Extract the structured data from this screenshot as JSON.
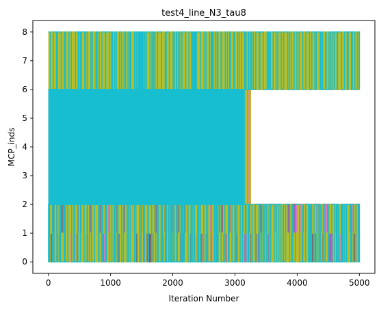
{
  "chart_data": {
    "type": "line",
    "title": "test4_line_N3_tau8",
    "xlabel": "Iteration Number",
    "ylabel": "MCP_inds",
    "xlim": [
      -250,
      5250
    ],
    "ylim": [
      -0.4,
      8.4
    ],
    "xticks": [
      0,
      1000,
      2000,
      3000,
      4000,
      5000
    ],
    "yticks": [
      0,
      1,
      2,
      3,
      4,
      5,
      6,
      7,
      8
    ],
    "grid": false,
    "legend": "none",
    "x_range": [
      0,
      5000
    ],
    "series": [
      {
        "color": "#1f77b4",
        "segments": [
          {
            "x": [
              0,
              5000
            ],
            "levels": [
              6,
              8
            ],
            "density": 0.45
          },
          {
            "x": [
              0,
              3250
            ],
            "levels": [
              2,
              6
            ],
            "density": 0.35
          },
          {
            "x": [
              50,
              5000
            ],
            "levels": [
              0,
              2
            ],
            "density": 0.25
          }
        ]
      },
      {
        "color": "#ff7f0e",
        "segments": [
          {
            "x": [
              0,
              5000
            ],
            "levels": [
              6,
              8
            ],
            "density": 0.3
          },
          {
            "x": [
              0,
              3250
            ],
            "levels": [
              2,
              6
            ],
            "density": 0.25
          },
          {
            "x": [
              30,
              5000
            ],
            "levels": [
              0,
              1,
              2
            ],
            "density": 0.8
          }
        ]
      },
      {
        "color": "#2ca02c",
        "segments": [
          {
            "x": [
              200,
              5000
            ],
            "levels": [
              6,
              8
            ],
            "density": 1.2
          },
          {
            "x": [
              0,
              3250
            ],
            "levels": [
              2,
              6
            ],
            "density": 0.3
          },
          {
            "x": [
              100,
              5000
            ],
            "levels": [
              0,
              2
            ],
            "density": 0.3
          }
        ]
      },
      {
        "color": "#d62728",
        "segments": [
          {
            "x": [
              0,
              3250
            ],
            "levels": [
              2,
              6
            ],
            "density": 0.2
          },
          {
            "x": [
              50,
              1600
            ],
            "levels": [
              0,
              1,
              2
            ],
            "density": 0.5
          }
        ]
      },
      {
        "color": "#9467bd",
        "segments": [
          {
            "x": [
              0,
              3250
            ],
            "levels": [
              2,
              6
            ],
            "density": 0.3
          },
          {
            "x": [
              0,
              5000
            ],
            "levels": [
              0,
              1,
              2
            ],
            "density": 0.9
          }
        ]
      },
      {
        "color": "#8c564b",
        "segments": [
          {
            "x": [
              0,
              3250
            ],
            "levels": [
              2,
              6
            ],
            "density": 0.2
          },
          {
            "x": [
              0,
              5000
            ],
            "levels": [
              0,
              2
            ],
            "density": 0.2
          }
        ]
      },
      {
        "color": "#e377c2",
        "segments": [
          {
            "x": [
              220,
              5000
            ],
            "levels": [
              6,
              8
            ],
            "density": 0.25
          },
          {
            "x": [
              0,
              3250
            ],
            "levels": [
              2,
              6
            ],
            "density": 0.4
          },
          {
            "x": [
              0,
              5000
            ],
            "levels": [
              0,
              1,
              2
            ],
            "density": 0.4
          }
        ]
      },
      {
        "color": "#7f7f7f",
        "segments": [
          {
            "x": [
              0,
              1600
            ],
            "levels": [
              2,
              6
            ],
            "density": 1.6
          },
          {
            "x": [
              0,
              3250
            ],
            "levels": [
              0,
              2
            ],
            "density": 0.2
          }
        ]
      },
      {
        "color": "#bcbd22",
        "segments": [
          {
            "x": [
              0,
              5000
            ],
            "levels": [
              6,
              8
            ],
            "density": 1.5
          },
          {
            "x": [
              0,
              3250
            ],
            "levels": [
              2,
              6
            ],
            "density": 0.3
          },
          {
            "x": [
              0,
              5000
            ],
            "levels": [
              0,
              1,
              2
            ],
            "density": 1.1
          }
        ]
      },
      {
        "color": "#17becf",
        "segments": [
          {
            "x": [
              0,
              5000
            ],
            "levels": [
              6,
              8
            ],
            "density": 0.3
          },
          {
            "x": [
              0,
              3150
            ],
            "levels": [
              2,
              6
            ],
            "density": 1.8
          },
          {
            "x": [
              0,
              5000
            ],
            "levels": [
              0,
              2
            ],
            "density": 0.3
          }
        ]
      }
    ]
  }
}
